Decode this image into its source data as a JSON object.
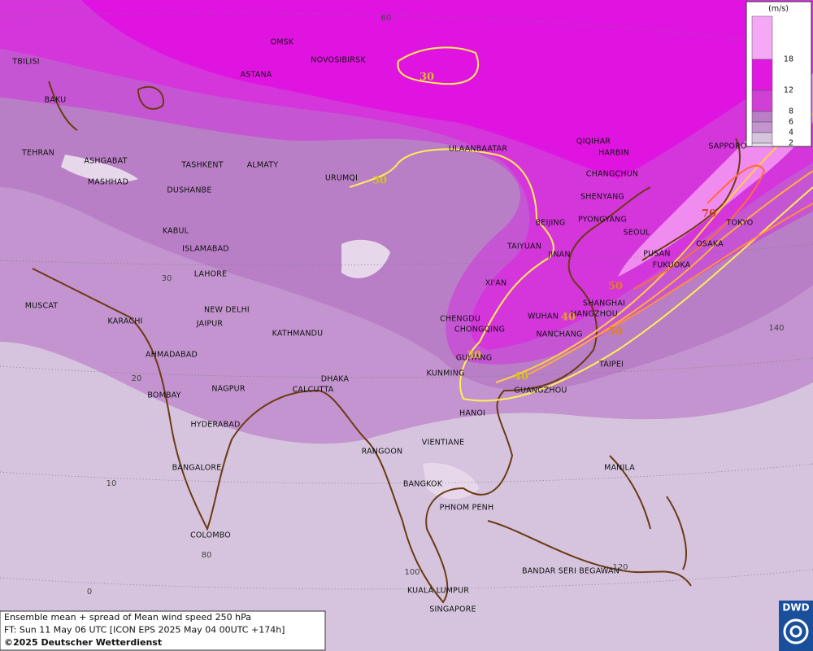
{
  "cities": [
    "OMSK",
    "NOVOSIBIRSK",
    "TBILISI",
    "ASTANA",
    "BAKU",
    "TEHRAN",
    "ASHGABAT",
    "MASHHAD",
    "TASHKENT",
    "DUSHANBE",
    "ALMATY",
    "URUMQI",
    "ULAANBAATAR",
    "QIQIHAR",
    "HARBIN",
    "SAPPORO",
    "CHANGCHUN",
    "SHENYANG",
    "BEIJING",
    "PYONGYANG",
    "SEOUL",
    "TOKYO",
    "OSAKA",
    "TAIYUAN",
    "JINAN",
    "PUSAN",
    "FUKUOKA",
    "KABUL",
    "ISLAMABAD",
    "LAHORE",
    "XI'AN",
    "SHANGHAI",
    "WUHAN",
    "HANGZHOU",
    "CHENGDU",
    "CHONGQING",
    "NANCHANG",
    "MUSCAT",
    "NEW DELHI",
    "KARACHI",
    "JAIPUR",
    "KATHMANDU",
    "AHMADABAD",
    "GUIYANG",
    "TAIPEI",
    "KUNMING",
    "DHAKA",
    "CALCUTTA",
    "NAGPUR",
    "BOMBAY",
    "GUANGZHOU",
    "HANOI",
    "HYDERABAD",
    "RANGOON",
    "VIENTIANE",
    "BANGALORE",
    "MANILA",
    "BANGKOK",
    "PHNOM PENH",
    "COLOMBO",
    "BANDAR SERI BEGAWAN",
    "KUALA LUMPUR",
    "SINGAPORE"
  ],
  "contour_labels": [
    "30",
    "30",
    "30",
    "40",
    "40",
    "50",
    "50",
    "70"
  ],
  "grid_labels": [
    "60",
    "30",
    "20",
    "10",
    "0",
    "80",
    "100",
    "120",
    "140"
  ],
  "legend": {
    "unit": "(m/s)",
    "levels": [
      18,
      12,
      8,
      6,
      4,
      2
    ]
  },
  "caption": [
    "Ensemble mean + spread of Mean wind speed 250 hPa",
    "FT: Sun 11 May 06 UTC [ICON EPS 2025 May 04 00UTC +174h]",
    "©2025 Deutscher Wetterdienst"
  ],
  "logo": "DWD"
}
